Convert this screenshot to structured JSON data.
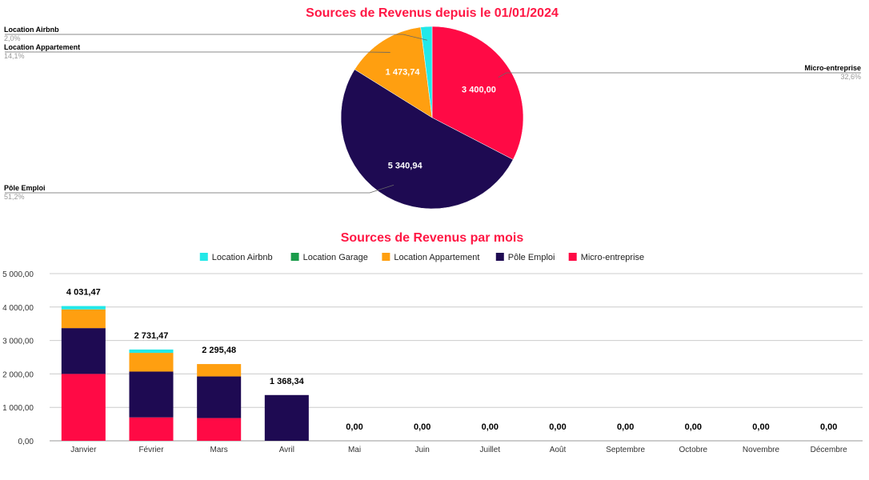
{
  "colors": {
    "title": "#ff1744",
    "Location Airbnb": "#22e8e8",
    "Location Garage": "#1a9c4a",
    "Location Appartement": "#ff9f10",
    "Pôle Emploi": "#1e0a52",
    "Micro-entreprise": "#ff0a45",
    "grid": "#cccccc",
    "callout_line": "#666666"
  },
  "chart_data": [
    {
      "type": "pie",
      "title": "Sources de Revenus depuis le 01/01/2024",
      "slices": [
        {
          "name": "Micro-entreprise",
          "value": 3400.0,
          "value_label": "3 400,00",
          "pct_label": "32,6%"
        },
        {
          "name": "Pôle Emploi",
          "value": 5340.94,
          "value_label": "5 340,94",
          "pct_label": "51,2%"
        },
        {
          "name": "Location Appartement",
          "value": 1473.74,
          "value_label": "1 473,74",
          "pct_label": "14,1%"
        },
        {
          "name": "Location Airbnb",
          "value": 209.31,
          "value_label": "",
          "pct_label": "2,0%"
        }
      ]
    },
    {
      "type": "bar",
      "stacked": true,
      "title": "Sources de Revenus par mois",
      "legend_position": "top",
      "grid": true,
      "categories": [
        "Janvier",
        "Février",
        "Mars",
        "Avril",
        "Mai",
        "Juin",
        "Juillet",
        "Août",
        "Septembre",
        "Octobre",
        "Novembre",
        "Décembre"
      ],
      "ylim": [
        0,
        5000
      ],
      "y_ticks": [
        0,
        1000,
        2000,
        3000,
        4000,
        5000
      ],
      "y_tick_labels": [
        "0,00",
        "1 000,00",
        "2 000,00",
        "3 000,00",
        "4 000,00",
        "5 000,00"
      ],
      "totals": [
        "4 031,47",
        "2 731,47",
        "2 295,48",
        "1 368,34",
        "0,00",
        "0,00",
        "0,00",
        "0,00",
        "0,00",
        "0,00",
        "0,00",
        "0,00"
      ],
      "series": [
        {
          "name": "Location Airbnb",
          "values": [
            100,
            100,
            0,
            0,
            0,
            0,
            0,
            0,
            0,
            0,
            0,
            0
          ]
        },
        {
          "name": "Location Garage",
          "values": [
            0,
            0,
            0,
            0,
            0,
            0,
            0,
            0,
            0,
            0,
            0,
            0
          ]
        },
        {
          "name": "Location Appartement",
          "values": [
            560,
            560,
            370,
            0,
            0,
            0,
            0,
            0,
            0,
            0,
            0,
            0
          ]
        },
        {
          "name": "Pôle Emploi",
          "values": [
            1370,
            1370,
            1245,
            1368.34,
            0,
            0,
            0,
            0,
            0,
            0,
            0,
            0
          ]
        },
        {
          "name": "Micro-entreprise",
          "values": [
            2000,
            700,
            680,
            0,
            0,
            0,
            0,
            0,
            0,
            0,
            0,
            0
          ]
        }
      ]
    }
  ]
}
